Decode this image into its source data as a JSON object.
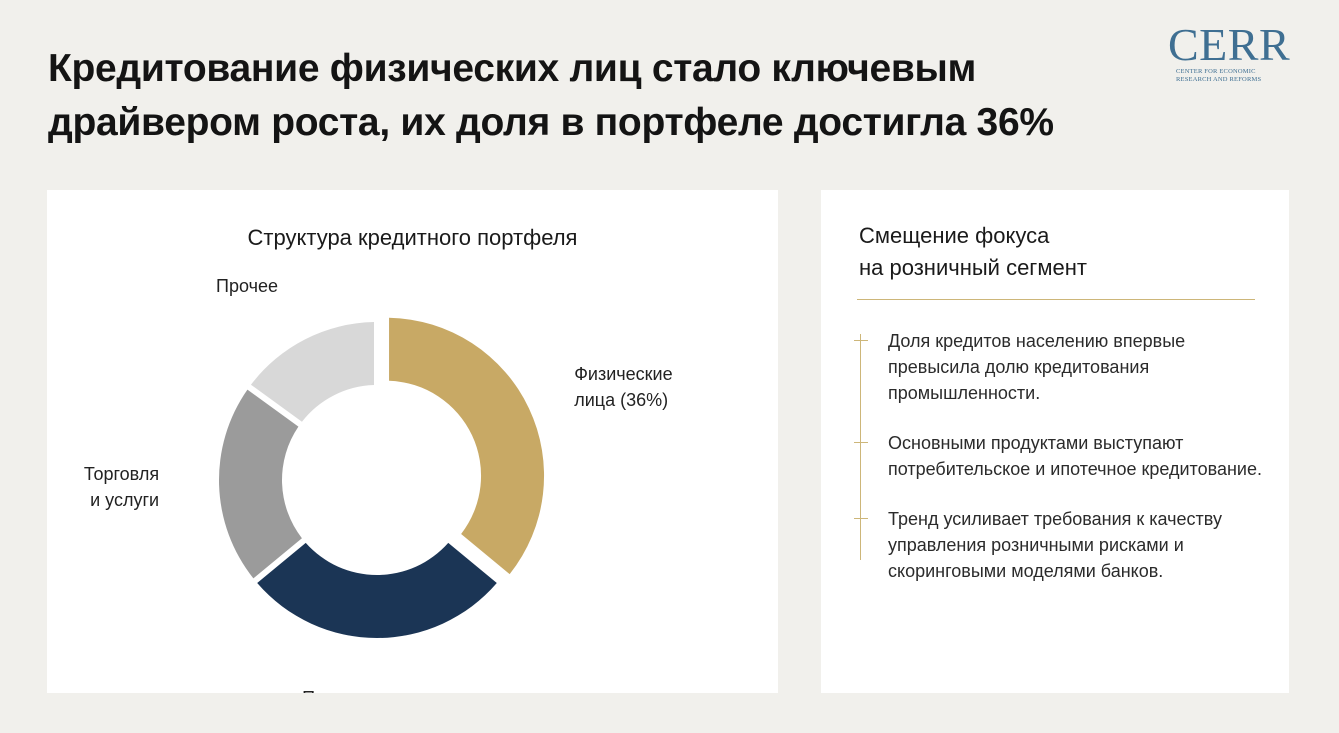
{
  "headline": {
    "line1": "Кредитование физических лиц стало ключевым",
    "line2": "драйвером роста, их доля в портфеле достигла 36%"
  },
  "logo": {
    "mark": "CERR",
    "sub_line1": "CENTER FOR ECONOMIC",
    "sub_line2": "RESEARCH AND REFORMS",
    "color": "#3f6f92"
  },
  "chart_data": {
    "type": "pie",
    "title": "Структура кредитного портфеля",
    "donut": true,
    "start_angle_deg": 0,
    "slices": [
      {
        "label": "Физические лица (36%)",
        "label_lines": [
          "Физические",
          "лица (36%)"
        ],
        "value": 36,
        "color": "#c8a965",
        "exploded": true
      },
      {
        "label": "Промышленность",
        "label_lines": [
          "Промышленность"
        ],
        "value": 28,
        "color": "#1b3555",
        "exploded": false
      },
      {
        "label": "Торговля и услуги",
        "label_lines": [
          "Торговля",
          "и услуги"
        ],
        "value": 21,
        "color": "#9b9b9b",
        "exploded": false
      },
      {
        "label": "Прочее",
        "label_lines": [
          "Прочее"
        ],
        "value": 15,
        "color": "#d8d8d8",
        "exploded": false
      }
    ]
  },
  "side": {
    "title_line1": "Смещение фокуса",
    "title_line2": "на розничный сегмент",
    "accent_color": "#cdb679",
    "bullets": [
      "Доля кредитов населению впервые превысила долю кредитования промышленности.",
      "Основными продуктами выступают потребительское и ипотечное кредитование.",
      "Тренд усиливает требования к качеству управления розничными рисками и скоринговыми моделями банков."
    ]
  }
}
